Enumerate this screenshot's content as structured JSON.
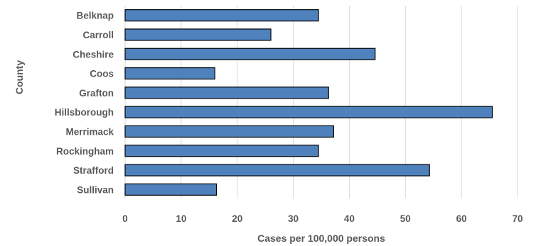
{
  "chart_data": {
    "type": "bar",
    "orientation": "horizontal",
    "categories": [
      "Belknap",
      "Carroll",
      "Cheshire",
      "Coos",
      "Grafton",
      "Hillsborough",
      "Merrimack",
      "Rockingham",
      "Strafford",
      "Sullivan"
    ],
    "values": [
      34.5,
      26.0,
      44.6,
      16.0,
      36.3,
      65.5,
      37.2,
      34.5,
      54.3,
      16.3
    ],
    "title": "",
    "xlabel": "Cases per 100,000 persons",
    "ylabel": "County",
    "xlim": [
      0,
      70
    ],
    "xticks": [
      "0",
      "10",
      "20",
      "30",
      "40",
      "50",
      "60",
      "70"
    ],
    "grid": true,
    "legend": "none",
    "bar_color": "#4f81bd"
  }
}
